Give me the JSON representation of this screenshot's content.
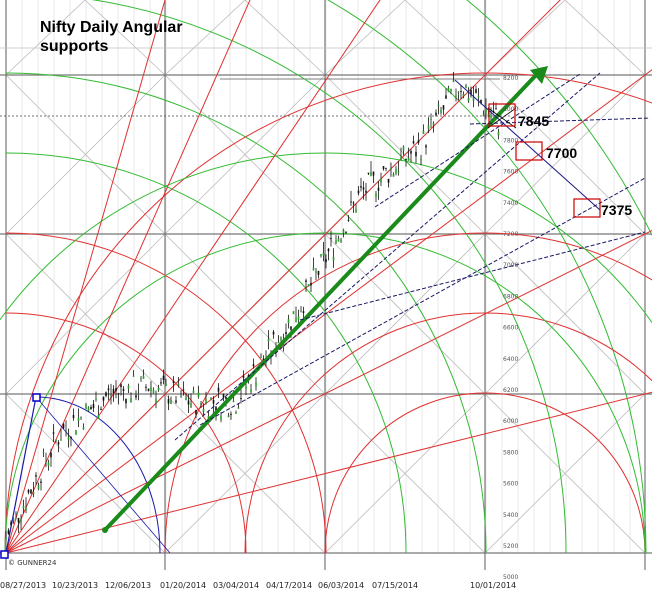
{
  "chart_data": {
    "type": "candlestick",
    "title_lines": [
      "Nifty Daily Angular",
      "supports"
    ],
    "watermark": "© GUNNER24",
    "x_tick_labels": [
      "08/27/2013",
      "10/23/2013",
      "12/06/2013",
      "01/20/2014",
      "03/04/2014",
      "04/17/2014",
      "06/03/2014",
      "07/15/2014",
      "10/01/2014"
    ],
    "y_tick_labels": [
      8200,
      8000,
      7800,
      7600,
      7400,
      7200,
      7000,
      6800,
      6600,
      6400,
      6200,
      6000,
      5800,
      5600,
      5400,
      5200,
      5000
    ],
    "support_levels": [
      {
        "label": "7845",
        "value": 7845
      },
      {
        "label": "7700",
        "value": 7700
      },
      {
        "label": "7375",
        "value": 7375
      }
    ],
    "price_series": [
      {
        "date": "08/27/2013",
        "close": 5300
      },
      {
        "date": "09/20/2013",
        "close": 5950
      },
      {
        "date": "10/23/2013",
        "close": 6200
      },
      {
        "date": "12/06/2013",
        "close": 6250
      },
      {
        "date": "01/20/2014",
        "close": 6150
      },
      {
        "date": "03/04/2014",
        "close": 6150
      },
      {
        "date": "04/17/2014",
        "close": 6750
      },
      {
        "date": "06/03/2014",
        "close": 7450
      },
      {
        "date": "07/15/2014",
        "close": 7750
      },
      {
        "date": "09/05/2014",
        "close": 8150
      },
      {
        "date": "10/01/2014",
        "close": 7900
      }
    ],
    "colors": {
      "green": "#1a8a1a",
      "red": "#dd2222",
      "navy": "#1a1a66",
      "grid": "#bcbcbc",
      "price": "#111111"
    }
  }
}
